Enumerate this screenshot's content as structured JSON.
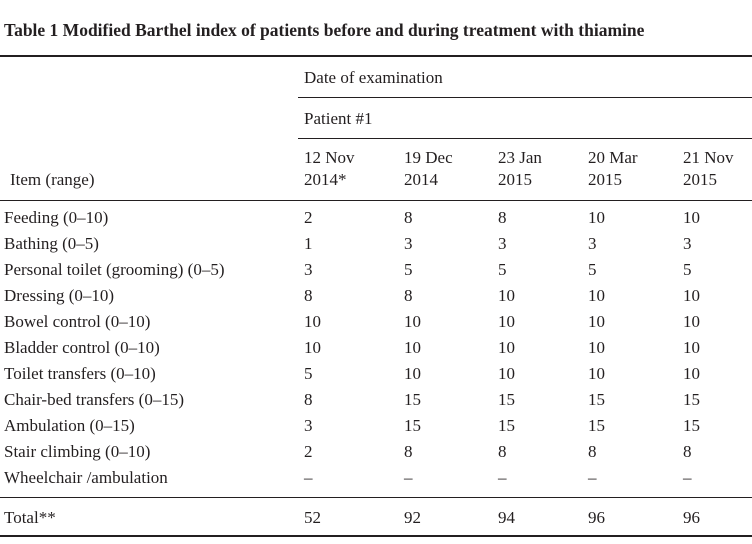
{
  "title": "Table 1 Modified Barthel index of patients before and during treatment with thiamine",
  "group_header": "Date of examination",
  "sub_header": "Patient #1",
  "item_header": "Item (range)",
  "date_columns": [
    {
      "line1": "12 Nov",
      "line2": "2014*"
    },
    {
      "line1": "19 Dec",
      "line2": "2014"
    },
    {
      "line1": "23 Jan",
      "line2": "2015"
    },
    {
      "line1": "20 Mar",
      "line2": "2015"
    },
    {
      "line1": "21 Nov",
      "line2": "2015"
    }
  ],
  "rows": [
    {
      "item": "Feeding (0–10)",
      "values": [
        "2",
        "8",
        "8",
        "10",
        "10"
      ]
    },
    {
      "item": "Bathing (0–5)",
      "values": [
        "1",
        "3",
        "3",
        "3",
        "3"
      ]
    },
    {
      "item": "Personal toilet (grooming) (0–5)",
      "values": [
        "3",
        "5",
        "5",
        "5",
        "5"
      ]
    },
    {
      "item": "Dressing (0–10)",
      "values": [
        "8",
        "8",
        "10",
        "10",
        "10"
      ]
    },
    {
      "item": "Bowel control (0–10)",
      "values": [
        "10",
        "10",
        "10",
        "10",
        "10"
      ]
    },
    {
      "item": "Bladder control (0–10)",
      "values": [
        "10",
        "10",
        "10",
        "10",
        "10"
      ]
    },
    {
      "item": "Toilet transfers (0–10)",
      "values": [
        "5",
        "10",
        "10",
        "10",
        "10"
      ]
    },
    {
      "item": "Chair-bed transfers (0–15)",
      "values": [
        "8",
        "15",
        "15",
        "15",
        "15"
      ]
    },
    {
      "item": "Ambulation (0–15)",
      "values": [
        "3",
        "15",
        "15",
        "15",
        "15"
      ]
    },
    {
      "item": "Stair climbing (0–10)",
      "values": [
        "2",
        "8",
        "8",
        "8",
        "8"
      ]
    },
    {
      "item": "Wheelchair /ambulation",
      "values": [
        "–",
        "–",
        "–",
        "–",
        "–"
      ]
    }
  ],
  "total": {
    "item": "Total**",
    "values": [
      "52",
      "92",
      "94",
      "96",
      "96"
    ]
  }
}
